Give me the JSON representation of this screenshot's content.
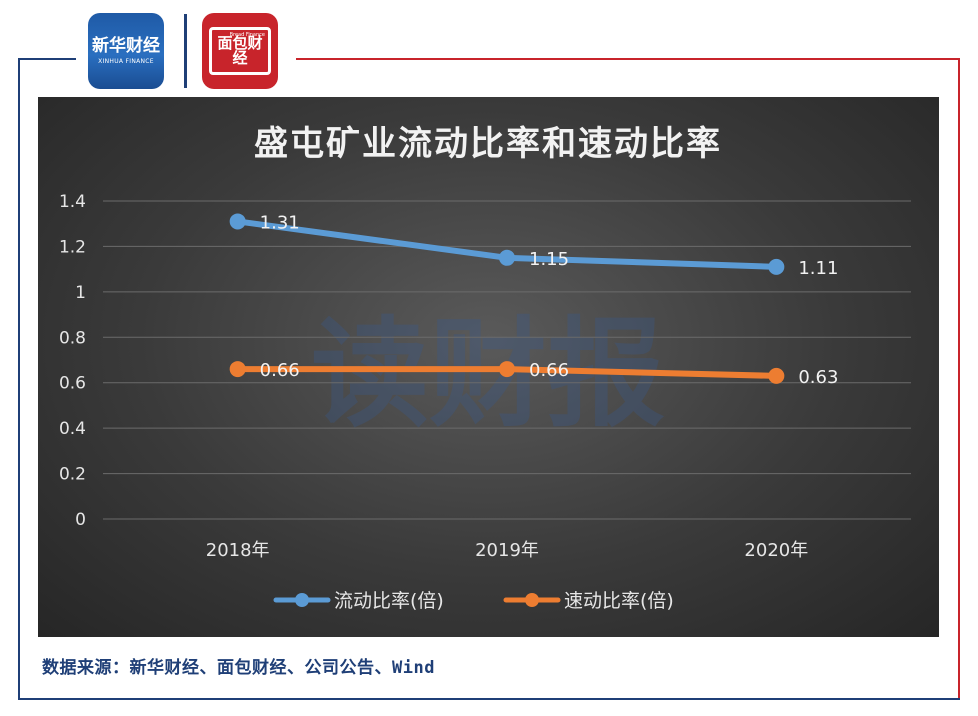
{
  "logos": {
    "xinhua": {
      "main": "新华财经",
      "sub": "XINHUA FINANCE"
    },
    "mianbao": {
      "main": "面包财经",
      "sub": "Bread Finance"
    }
  },
  "watermark": "读财报",
  "source_note": "数据来源：新华财经、面包财经、公司公告、Wind",
  "colors": {
    "frame": "#1f3f77",
    "accent_red": "#c8242b",
    "series1": "#5b9bd5",
    "series2": "#ed7d31"
  },
  "chart_data": {
    "type": "line",
    "title": "盛屯矿业流动比率和速动比率",
    "categories": [
      "2018年",
      "2019年",
      "2020年"
    ],
    "series": [
      {
        "name": "流动比率(倍)",
        "values": [
          1.31,
          1.15,
          1.11
        ],
        "labels": [
          "1.31",
          "1.15",
          "1.11"
        ],
        "color": "#5b9bd5"
      },
      {
        "name": "速动比率(倍)",
        "values": [
          0.66,
          0.66,
          0.63
        ],
        "labels": [
          "0.66",
          "0.66",
          "0.63"
        ],
        "color": "#ed7d31"
      }
    ],
    "ylim": [
      0,
      1.4
    ],
    "yticks": [
      "0",
      "0.2",
      "0.4",
      "0.6",
      "0.8",
      "1",
      "1.2",
      "1.4"
    ],
    "grid": true,
    "legend": "bottom-center"
  }
}
